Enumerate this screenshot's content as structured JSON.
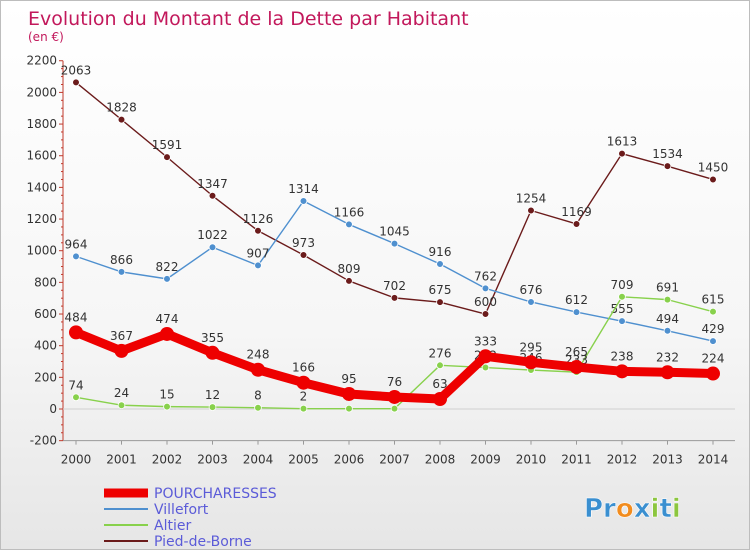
{
  "chart_data": {
    "type": "line",
    "title": "Evolution du Montant de la Dette par Habitant",
    "subtitle": "(en €)",
    "x": [
      2000,
      2001,
      2002,
      2003,
      2004,
      2005,
      2006,
      2007,
      2008,
      2009,
      2010,
      2011,
      2012,
      2013,
      2014
    ],
    "ylim": [
      -200,
      2200
    ],
    "yticks": [
      -200,
      0,
      200,
      400,
      600,
      800,
      1000,
      1200,
      1400,
      1600,
      1800,
      2000,
      2200
    ],
    "grid": false,
    "legend_position": "bottom-left",
    "series": [
      {
        "name": "POURCHARESSES",
        "color": "#ee0000",
        "values": [
          484,
          367,
          474,
          355,
          248,
          166,
          95,
          76,
          63,
          333,
          295,
          265,
          238,
          232,
          224
        ],
        "labels": [
          "484",
          "367",
          "474",
          "355",
          "248",
          "166",
          "95",
          "76",
          "63",
          "333",
          "295",
          "265",
          "238",
          "232",
          "224"
        ]
      },
      {
        "name": "Villefort",
        "color": "#4f90cf",
        "values": [
          964,
          866,
          822,
          1022,
          907,
          1314,
          1166,
          1045,
          916,
          762,
          676,
          612,
          555,
          494,
          429
        ],
        "labels": [
          "964",
          "866",
          "822",
          "1022",
          "907",
          "1314",
          "1166",
          "1045",
          "916",
          "762",
          "676",
          "612",
          "555",
          "494",
          "429"
        ]
      },
      {
        "name": "Altier",
        "color": "#88d14c",
        "values": [
          74,
          24,
          15,
          12,
          8,
          2,
          2,
          2,
          276,
          262,
          246,
          233,
          709,
          691,
          615
        ],
        "labels": [
          "74",
          "24",
          "15",
          "12",
          "8",
          "2",
          "2",
          "",
          "276",
          "262",
          "246",
          "233",
          "709",
          "691",
          "615"
        ]
      },
      {
        "name": "Pied-de-Borne",
        "color": "#6b1b1b",
        "values": [
          2063,
          1828,
          1591,
          1347,
          1126,
          973,
          809,
          702,
          675,
          600,
          1254,
          1169,
          1613,
          1534,
          1450
        ],
        "labels": [
          "2063",
          "1828",
          "1591",
          "1347",
          "1126",
          "973",
          "809",
          "702",
          "675",
          "600",
          "1254",
          "1169",
          "1613",
          "1534",
          "1450"
        ]
      }
    ]
  },
  "logo": {
    "text": "Proxiti"
  }
}
